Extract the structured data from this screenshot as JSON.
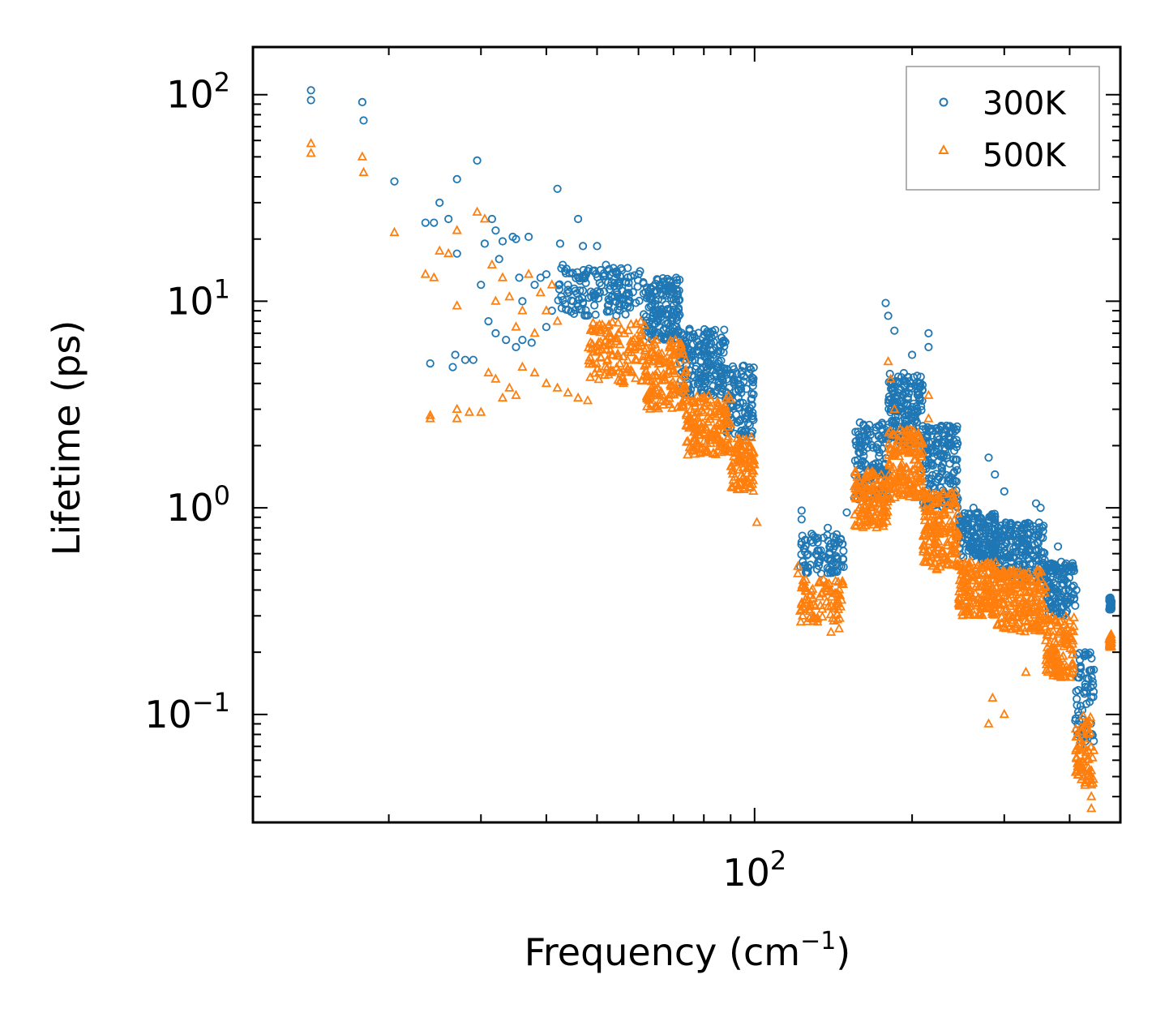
{
  "chart_data": {
    "type": "scatter",
    "xscale": "log",
    "yscale": "log",
    "xlim": [
      11,
      500
    ],
    "ylim": [
      0.03,
      170
    ],
    "xlabel": "Frequency (cm",
    "xlabel_exp": "−1",
    "xlabel_close": ")",
    "ylabel": "Lifetime (ps)",
    "x_ticks": [
      {
        "base": "10",
        "exp": "2",
        "value": 100
      }
    ],
    "y_ticks": [
      {
        "base": "10",
        "exp": "2",
        "value": 100
      },
      {
        "base": "10",
        "exp": "1",
        "value": 10
      },
      {
        "base": "10",
        "exp": "0",
        "value": 1
      },
      {
        "base": "10",
        "exp": "−1",
        "value": 0.1
      }
    ],
    "legend_position": "top-right",
    "series": [
      {
        "name": "300K",
        "marker": "circle",
        "color": "#1f77b4",
        "points": [
          [
            14.2,
            105
          ],
          [
            14.2,
            94
          ],
          [
            17.8,
            92
          ],
          [
            17.9,
            75
          ],
          [
            20.5,
            38
          ],
          [
            25.0,
            30
          ],
          [
            24.4,
            24
          ],
          [
            23.5,
            24
          ],
          [
            26.0,
            25
          ],
          [
            27.0,
            39
          ],
          [
            27.0,
            17
          ],
          [
            26.8,
            5.5
          ],
          [
            26.5,
            4.8
          ],
          [
            24.0,
            5.0
          ],
          [
            29.5,
            48
          ],
          [
            30.0,
            12
          ],
          [
            30.5,
            19
          ],
          [
            31.5,
            25
          ],
          [
            32.0,
            22
          ],
          [
            32.5,
            16
          ],
          [
            33.0,
            19.5
          ],
          [
            34.5,
            20.5
          ],
          [
            35.0,
            20
          ],
          [
            35.5,
            13
          ],
          [
            36.0,
            10
          ],
          [
            37.0,
            20.5
          ],
          [
            38.0,
            12
          ],
          [
            39.0,
            13
          ],
          [
            40.0,
            13.5
          ],
          [
            41.0,
            9
          ],
          [
            42.0,
            35
          ],
          [
            42.5,
            19
          ],
          [
            43.0,
            15
          ],
          [
            44.0,
            12
          ],
          [
            45.0,
            10
          ],
          [
            46.0,
            25
          ],
          [
            47.0,
            18.5
          ],
          [
            48.0,
            14
          ],
          [
            50.0,
            18.5
          ],
          [
            52.0,
            15
          ],
          [
            28.0,
            5.2
          ],
          [
            29.0,
            5.2
          ],
          [
            31.0,
            8
          ],
          [
            32.0,
            7
          ],
          [
            33.5,
            6.5
          ],
          [
            35.0,
            6
          ],
          [
            36.0,
            6.5
          ],
          [
            37.5,
            6.3
          ],
          [
            40.0,
            7.5
          ]
        ],
        "clusters": [
          {
            "x0": 42,
            "x1": 62,
            "ylo": 8.5,
            "yhi": 14.5,
            "n": 160
          },
          {
            "x0": 62,
            "x1": 72,
            "ylo": 6.5,
            "yhi": 13.0,
            "n": 160
          },
          {
            "x0": 72,
            "x1": 88,
            "ylo": 3.5,
            "yhi": 7.5,
            "n": 190
          },
          {
            "x0": 88,
            "x1": 100,
            "ylo": 2.2,
            "yhi": 5.0,
            "n": 110
          },
          {
            "x0": 122,
            "x1": 148,
            "ylo": 0.48,
            "yhi": 0.75,
            "n": 90
          },
          {
            "x0": 155,
            "x1": 180,
            "ylo": 1.1,
            "yhi": 2.6,
            "n": 140
          },
          {
            "x0": 180,
            "x1": 210,
            "ylo": 2.0,
            "yhi": 4.5,
            "n": 170
          },
          {
            "x0": 210,
            "x1": 245,
            "ylo": 1.0,
            "yhi": 2.5,
            "n": 170
          },
          {
            "x0": 245,
            "x1": 290,
            "ylo": 0.55,
            "yhi": 0.95,
            "n": 170
          },
          {
            "x0": 290,
            "x1": 360,
            "ylo": 0.45,
            "yhi": 0.85,
            "n": 200
          },
          {
            "x0": 360,
            "x1": 410,
            "ylo": 0.3,
            "yhi": 0.55,
            "n": 120
          },
          {
            "x0": 410,
            "x1": 445,
            "ylo": 0.07,
            "yhi": 0.2,
            "n": 70
          },
          {
            "x0": 476,
            "x1": 481,
            "ylo": 0.32,
            "yhi": 0.37,
            "n": 30
          }
        ],
        "outliers": [
          [
            123,
            0.97
          ],
          [
            123,
            0.88
          ],
          [
            125,
            0.7
          ],
          [
            132,
            0.68
          ],
          [
            138,
            0.8
          ],
          [
            150,
            0.95
          ],
          [
            160,
            1.6
          ],
          [
            178,
            9.8
          ],
          [
            180,
            8.5
          ],
          [
            185,
            7.2
          ],
          [
            200,
            5.5
          ],
          [
            215,
            7.0
          ],
          [
            215,
            6.0
          ],
          [
            228,
            1.55
          ],
          [
            240,
            1.3
          ],
          [
            262,
            1.0
          ],
          [
            280,
            1.75
          ],
          [
            288,
            1.45
          ],
          [
            300,
            1.2
          ],
          [
            345,
            1.05
          ],
          [
            352,
            1.0
          ],
          [
            380,
            0.65
          ],
          [
            398,
            0.52
          ],
          [
            412,
            0.4
          ],
          [
            440,
            0.08
          ]
        ]
      },
      {
        "name": "500K",
        "marker": "triangle",
        "color": "#ff7f0e",
        "points": [
          [
            14.2,
            58
          ],
          [
            14.2,
            52
          ],
          [
            17.8,
            50
          ],
          [
            17.9,
            42
          ],
          [
            20.5,
            21.5
          ],
          [
            23.5,
            13.5
          ],
          [
            24.4,
            13
          ],
          [
            25.0,
            17.5
          ],
          [
            26.0,
            17
          ],
          [
            27.0,
            22
          ],
          [
            27.0,
            9.5
          ],
          [
            29.5,
            27
          ],
          [
            30.5,
            25
          ],
          [
            31.5,
            15
          ],
          [
            32.0,
            10
          ],
          [
            33.0,
            13
          ],
          [
            34.0,
            10.5
          ],
          [
            35.0,
            7.5
          ],
          [
            36.0,
            9
          ],
          [
            37.0,
            13.5
          ],
          [
            38.0,
            7
          ],
          [
            39.0,
            11
          ],
          [
            40.0,
            9
          ],
          [
            41.0,
            12
          ],
          [
            42.0,
            8
          ],
          [
            24.0,
            2.8
          ],
          [
            24.0,
            2.7
          ],
          [
            27.0,
            2.7
          ],
          [
            27.0,
            3.0
          ],
          [
            28.5,
            2.9
          ],
          [
            30.0,
            2.9
          ],
          [
            31.0,
            4.5
          ],
          [
            32.0,
            4.2
          ],
          [
            33.0,
            3.4
          ],
          [
            34.0,
            3.8
          ],
          [
            35.0,
            3.5
          ],
          [
            36.0,
            4.8
          ],
          [
            38.0,
            4.5
          ],
          [
            40.0,
            4.0
          ],
          [
            42.0,
            3.8
          ],
          [
            44.0,
            3.6
          ],
          [
            46.0,
            3.4
          ],
          [
            48.0,
            3.3
          ]
        ],
        "clusters": [
          {
            "x0": 48,
            "x1": 62,
            "ylo": 4.0,
            "yhi": 8.0,
            "n": 130
          },
          {
            "x0": 62,
            "x1": 74,
            "ylo": 3.0,
            "yhi": 6.5,
            "n": 150
          },
          {
            "x0": 74,
            "x1": 90,
            "ylo": 1.8,
            "yhi": 3.5,
            "n": 160
          },
          {
            "x0": 90,
            "x1": 100,
            "ylo": 1.2,
            "yhi": 2.2,
            "n": 90
          },
          {
            "x0": 122,
            "x1": 148,
            "ylo": 0.28,
            "yhi": 0.45,
            "n": 90
          },
          {
            "x0": 155,
            "x1": 180,
            "ylo": 0.8,
            "yhi": 1.5,
            "n": 140
          },
          {
            "x0": 180,
            "x1": 210,
            "ylo": 1.1,
            "yhi": 2.4,
            "n": 170
          },
          {
            "x0": 210,
            "x1": 245,
            "ylo": 0.5,
            "yhi": 1.2,
            "n": 170
          },
          {
            "x0": 245,
            "x1": 290,
            "ylo": 0.3,
            "yhi": 0.55,
            "n": 170
          },
          {
            "x0": 290,
            "x1": 360,
            "ylo": 0.25,
            "yhi": 0.5,
            "n": 200
          },
          {
            "x0": 360,
            "x1": 410,
            "ylo": 0.15,
            "yhi": 0.3,
            "n": 120
          },
          {
            "x0": 410,
            "x1": 445,
            "ylo": 0.045,
            "yhi": 0.1,
            "n": 70
          },
          {
            "x0": 476,
            "x1": 481,
            "ylo": 0.21,
            "yhi": 0.245,
            "n": 30
          }
        ],
        "outliers": [
          [
            101,
            0.85
          ],
          [
            99,
            1.3
          ],
          [
            98,
            1.4
          ],
          [
            121,
            0.52
          ],
          [
            121,
            0.48
          ],
          [
            125,
            0.36
          ],
          [
            140,
            0.25
          ],
          [
            145,
            0.26
          ],
          [
            180,
            5.1
          ],
          [
            182,
            4.2
          ],
          [
            185,
            3.0
          ],
          [
            215,
            3.5
          ],
          [
            215,
            2.7
          ],
          [
            280,
            0.09
          ],
          [
            285,
            0.12
          ],
          [
            300,
            0.1
          ],
          [
            330,
            0.16
          ],
          [
            440,
            0.035
          ],
          [
            440,
            0.04
          ]
        ]
      }
    ]
  }
}
